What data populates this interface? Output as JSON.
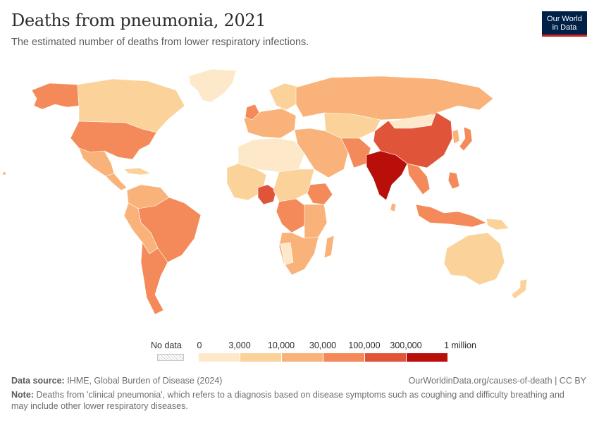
{
  "header": {
    "title": "Deaths from pneumonia, 2021",
    "subtitle": "The estimated number of deaths from lower respiratory infections.",
    "logo_line1": "Our World",
    "logo_line2": "in Data"
  },
  "legend": {
    "no_data_label": "No data",
    "bins": [
      {
        "from": "0",
        "to": "3,000",
        "color": "#fde9c9"
      },
      {
        "from": "3,000",
        "to": "10,000",
        "color": "#fbd39a"
      },
      {
        "from": "10,000",
        "to": "30,000",
        "color": "#f9b37a"
      },
      {
        "from": "30,000",
        "to": "100,000",
        "color": "#f48a5a"
      },
      {
        "from": "100,000",
        "to": "300,000",
        "color": "#e0553a"
      },
      {
        "from": "300,000",
        "to": "1 million",
        "color": "#b80f0a"
      }
    ],
    "ticks": [
      "0",
      "3,000",
      "10,000",
      "30,000",
      "100,000",
      "300,000",
      "1 million"
    ]
  },
  "map_data": {
    "type": "choropleth",
    "metric": "Deaths from pneumonia",
    "year": 2021,
    "regions": [
      {
        "name": "India",
        "bin": 6
      },
      {
        "name": "China",
        "bin": 5
      },
      {
        "name": "Pakistan",
        "bin": 4
      },
      {
        "name": "Nigeria",
        "bin": 5
      },
      {
        "name": "United States",
        "bin": 4
      },
      {
        "name": "Brazil",
        "bin": 4
      },
      {
        "name": "Indonesia",
        "bin": 4
      },
      {
        "name": "Japan",
        "bin": 4
      },
      {
        "name": "United Kingdom",
        "bin": 4
      },
      {
        "name": "Russia",
        "bin": 3
      },
      {
        "name": "Canada",
        "bin": 2
      },
      {
        "name": "Australia",
        "bin": 2
      },
      {
        "name": "Greenland",
        "bin": 1
      },
      {
        "name": "Argentina",
        "bin": 4
      },
      {
        "name": "Mexico",
        "bin": 3
      },
      {
        "name": "DR Congo",
        "bin": 4
      },
      {
        "name": "Ethiopia",
        "bin": 4
      },
      {
        "name": "Bangladesh",
        "bin": 4
      },
      {
        "name": "Mongolia",
        "bin": 1
      },
      {
        "name": "Kazakhstan",
        "bin": 2
      }
    ]
  },
  "footer": {
    "source_label": "Data source:",
    "source_text": "IHME, Global Burden of Disease (2024)",
    "url_text": "OurWorldinData.org/causes-of-death | CC BY",
    "note_label": "Note:",
    "note_text": "Deaths from 'clinical pneumonia', which refers to a diagnosis based on disease symptoms such as coughing and difficulty breathing and may include other lower respiratory diseases."
  }
}
